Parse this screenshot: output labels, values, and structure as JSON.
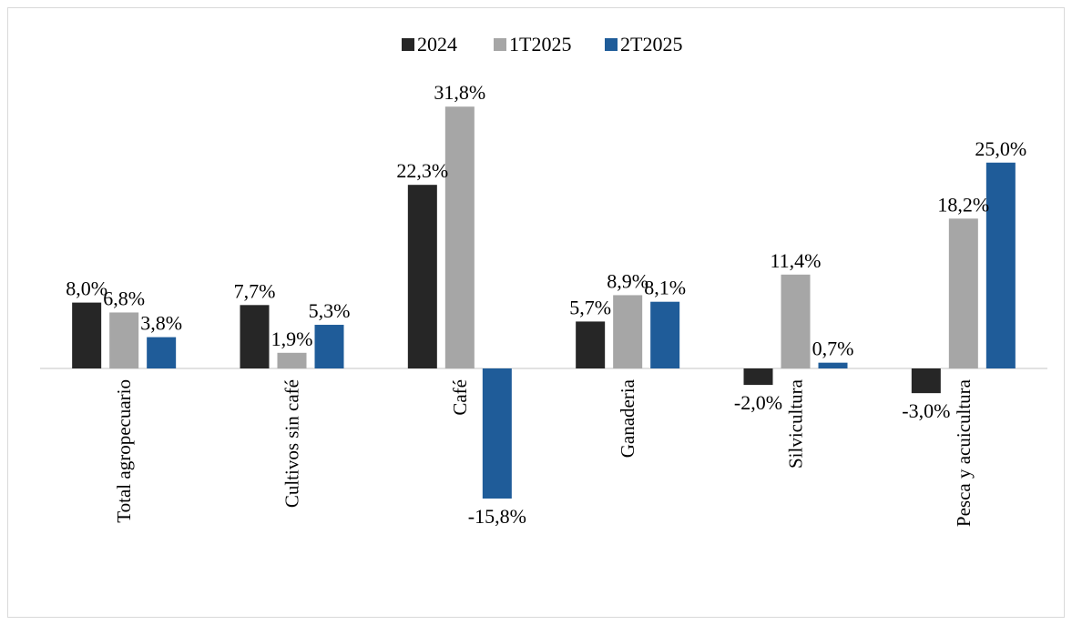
{
  "chart_data": {
    "type": "bar",
    "title": "",
    "xlabel": "",
    "ylabel": "",
    "ylim": [
      -20,
      35
    ],
    "grid": false,
    "legend_position": "top-center",
    "categories": [
      "Total agropecuario",
      "Cultivos sin café",
      "Café",
      "Ganaderia",
      "Silvicultura",
      "Pesca y acuicultura"
    ],
    "series": [
      {
        "name": "2024",
        "color": "#262626",
        "values": [
          8.0,
          7.7,
          22.3,
          5.7,
          -2.0,
          -3.0
        ],
        "labels": [
          "8,0%",
          "7,7%",
          "22,3%",
          "5,7%",
          "-2,0%",
          "-3,0%"
        ]
      },
      {
        "name": "1T2025",
        "color": "#a6a6a6",
        "values": [
          6.8,
          1.9,
          31.8,
          8.9,
          11.4,
          18.2
        ],
        "labels": [
          "6,8%",
          "1,9%",
          "31,8%",
          "8,9%",
          "11,4%",
          "18,2%"
        ]
      },
      {
        "name": "2T2025",
        "color": "#1f5c99",
        "values": [
          3.8,
          5.3,
          -15.8,
          8.1,
          0.7,
          25.0
        ],
        "labels": [
          "3,8%",
          "5,3%",
          "-15,8%",
          "8,1%",
          "0,7%",
          "25,0%"
        ]
      }
    ]
  }
}
